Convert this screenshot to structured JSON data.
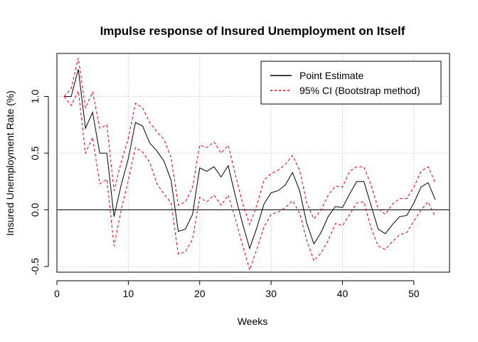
{
  "chart_data": {
    "type": "line",
    "title": "Impulse response of Insured Unemployment on Itself",
    "xlabel": "Weeks",
    "ylabel": "Insured Unemployment Rate (%)",
    "xlim": [
      0,
      55
    ],
    "ylim": [
      -0.55,
      1.38
    ],
    "x_ticks": [
      0,
      10,
      20,
      30,
      40,
      50
    ],
    "y_ticks": [
      -0.5,
      0.0,
      0.5,
      1.0
    ],
    "x_tick_labels": [
      "0",
      "10",
      "20",
      "30",
      "40",
      "50"
    ],
    "y_tick_labels": [
      "-0.5",
      "0.0",
      "0.5",
      "1.0"
    ],
    "grid": true,
    "reference_line_y": 0,
    "legend_position": "top-right",
    "x": [
      1,
      2,
      3,
      4,
      5,
      6,
      7,
      8,
      9,
      10,
      11,
      12,
      13,
      14,
      15,
      16,
      17,
      18,
      19,
      20,
      21,
      22,
      23,
      24,
      25,
      26,
      27,
      28,
      29,
      30,
      31,
      32,
      33,
      34,
      35,
      36,
      37,
      38,
      39,
      40,
      41,
      42,
      43,
      44,
      45,
      46,
      47,
      48,
      49,
      50,
      51,
      52,
      53
    ],
    "series": [
      {
        "name": "Point Estimate",
        "color": "#000000",
        "style": "solid",
        "values": [
          1.0,
          1.0,
          1.24,
          0.72,
          0.86,
          0.5,
          0.5,
          -0.06,
          0.22,
          0.45,
          0.77,
          0.74,
          0.59,
          0.52,
          0.43,
          0.26,
          -0.19,
          -0.17,
          -0.04,
          0.37,
          0.34,
          0.38,
          0.29,
          0.39,
          0.12,
          -0.12,
          -0.34,
          -0.16,
          0.05,
          0.15,
          0.17,
          0.22,
          0.33,
          0.17,
          -0.12,
          -0.3,
          -0.2,
          -0.06,
          0.03,
          0.02,
          0.14,
          0.25,
          0.25,
          0.04,
          -0.17,
          -0.21,
          -0.13,
          -0.06,
          -0.05,
          0.06,
          0.2,
          0.24,
          0.09
        ]
      },
      {
        "name": "95% CI (Bootstrap method) upper",
        "legend": "95% CI (Bootstrap method)",
        "color": "#e8000b",
        "style": "dashed",
        "values": [
          1.0,
          1.07,
          1.34,
          0.9,
          1.04,
          0.72,
          0.75,
          0.17,
          0.42,
          0.63,
          0.94,
          0.9,
          0.77,
          0.69,
          0.62,
          0.46,
          0.04,
          0.07,
          0.2,
          0.57,
          0.55,
          0.6,
          0.5,
          0.57,
          0.31,
          0.06,
          -0.13,
          0.04,
          0.26,
          0.32,
          0.35,
          0.4,
          0.48,
          0.35,
          0.06,
          -0.08,
          0.0,
          0.13,
          0.21,
          0.2,
          0.34,
          0.38,
          0.38,
          0.22,
          0.01,
          -0.04,
          0.05,
          0.1,
          0.1,
          0.2,
          0.34,
          0.38,
          0.24
        ]
      },
      {
        "name": "95% CI (Bootstrap method) lower",
        "legend": "",
        "color": "#e8000b",
        "style": "dashed",
        "values": [
          1.0,
          0.92,
          1.05,
          0.5,
          0.64,
          0.23,
          0.27,
          -0.32,
          0.0,
          0.26,
          0.55,
          0.51,
          0.42,
          0.23,
          0.14,
          0.06,
          -0.39,
          -0.37,
          -0.26,
          0.11,
          0.07,
          0.13,
          0.04,
          0.13,
          -0.08,
          -0.31,
          -0.53,
          -0.35,
          -0.15,
          -0.04,
          -0.02,
          0.02,
          0.08,
          -0.03,
          -0.27,
          -0.45,
          -0.38,
          -0.27,
          -0.12,
          -0.14,
          -0.04,
          0.06,
          0.07,
          -0.16,
          -0.32,
          -0.35,
          -0.28,
          -0.22,
          -0.2,
          -0.1,
          0.0,
          0.07,
          -0.06
        ]
      }
    ],
    "legend": [
      {
        "label": "Point Estimate",
        "color": "#000000",
        "style": "solid"
      },
      {
        "label": "95% CI (Bootstrap method)",
        "color": "#e8000b",
        "style": "dashed"
      }
    ]
  }
}
